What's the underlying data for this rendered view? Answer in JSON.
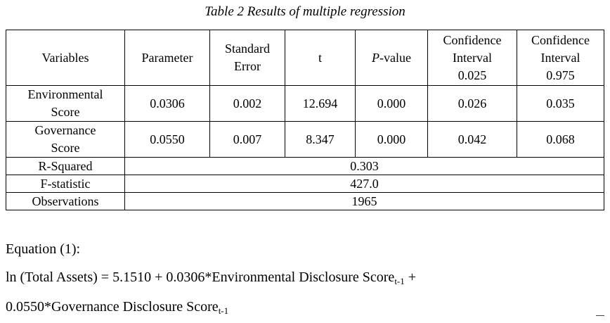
{
  "caption": "Table 2 Results of multiple regression",
  "table": {
    "headers": {
      "variables": "Variables",
      "parameter": "Parameter",
      "std_error_1": "Standard",
      "std_error_2": "Error",
      "t": "t",
      "pvalue_italic": "P",
      "pvalue_rest": "-value",
      "ci_low_1": "Confidence",
      "ci_low_2": "Interval",
      "ci_low_3": "0.025",
      "ci_high_1": "Confidence",
      "ci_high_2": "Interval",
      "ci_high_3": "0.975"
    },
    "rows": [
      {
        "name_1": "Environmental",
        "name_2": "Score",
        "parameter": "0.0306",
        "std_error": "0.002",
        "t": "12.694",
        "pvalue": "0.000",
        "ci_low": "0.026",
        "ci_high": "0.035"
      },
      {
        "name_1": "Governance",
        "name_2": "Score",
        "parameter": "0.0550",
        "std_error": "0.007",
        "t": "8.347",
        "pvalue": "0.000",
        "ci_low": "0.042",
        "ci_high": "0.068"
      }
    ],
    "stats": [
      {
        "label": "R-Squared",
        "value": "0.303"
      },
      {
        "label": "F-statistic",
        "value": "427.0"
      },
      {
        "label": "Observations",
        "value": "1965"
      }
    ]
  },
  "equation": {
    "label": "Equation (1):",
    "line1_a": "ln (Total Assets) = 5.1510 + 0.0306*Environmental Disclosure Score",
    "line1_sub": "t-1",
    "line1_b": " +",
    "line2_a": "0.0550*Governance Disclosure Score",
    "line2_sub": "t-1"
  }
}
